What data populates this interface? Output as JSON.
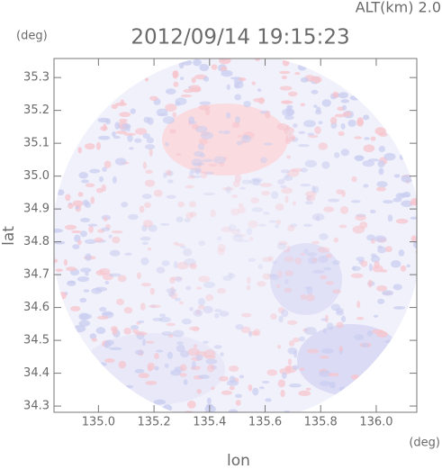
{
  "chart_data": {
    "type": "radar-image",
    "title": "2012/09/14 19:15:23",
    "annotation": "ALT(km) 2.0",
    "x_label": "lon",
    "y_label": "lat",
    "x_unit": "(deg)",
    "y_unit": "(deg)",
    "xlim": [
      134.84,
      136.146
    ],
    "ylim": [
      34.281,
      35.358
    ],
    "xticks": [
      {
        "value": 135,
        "label": "135.0"
      },
      135.2,
      135.4,
      135.6,
      135.8,
      {
        "value": 136,
        "label": "136.0"
      }
    ],
    "yticks": [
      34.3,
      34.4,
      34.5,
      34.6,
      34.7,
      34.8,
      34.9,
      {
        "value": 35,
        "label": "35.0"
      },
      35.1,
      35.2,
      35.3
    ]
  }
}
